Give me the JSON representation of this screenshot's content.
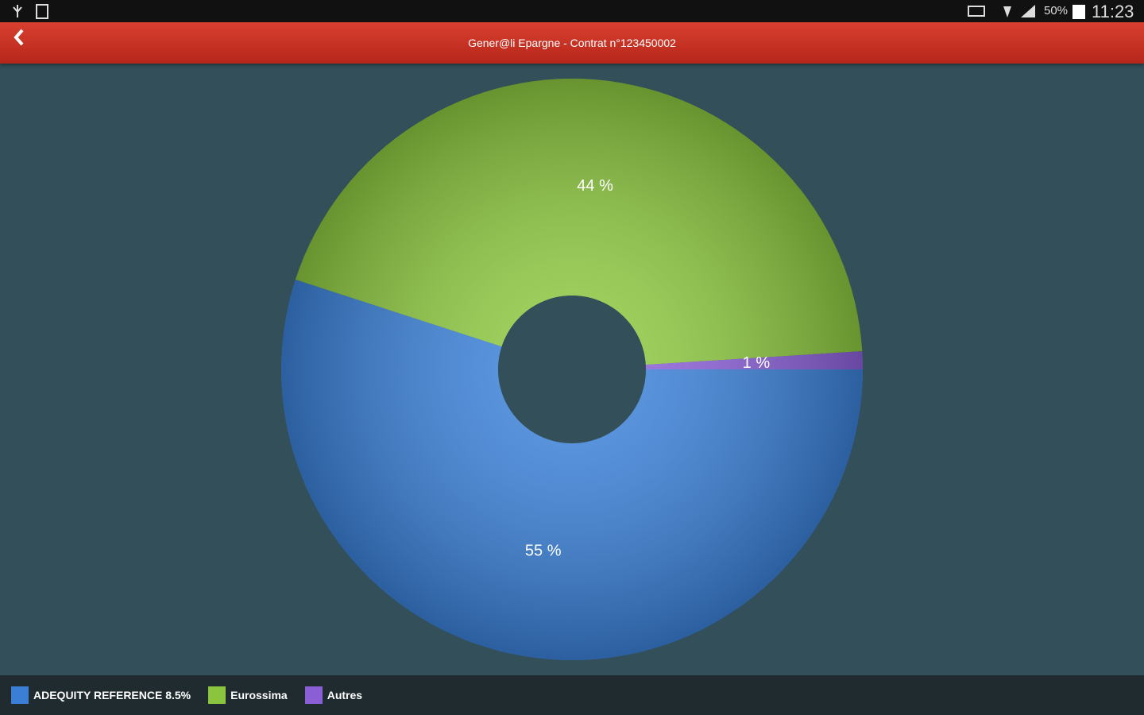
{
  "status_bar": {
    "battery": "50%",
    "time": "11:23"
  },
  "header": {
    "title": "Gener@li Epargne - Contrat n°123450002"
  },
  "chart_data": {
    "type": "donut",
    "categories": [
      "ADEQUITY REFERENCE 8.5%",
      "Eurossima",
      "Autres"
    ],
    "values": [
      55,
      44,
      1
    ],
    "value_labels": [
      "55 %",
      "44 %",
      "1 %"
    ],
    "colors": [
      "#3a7fd5",
      "#8bc53f",
      "#8a5fd6"
    ]
  }
}
